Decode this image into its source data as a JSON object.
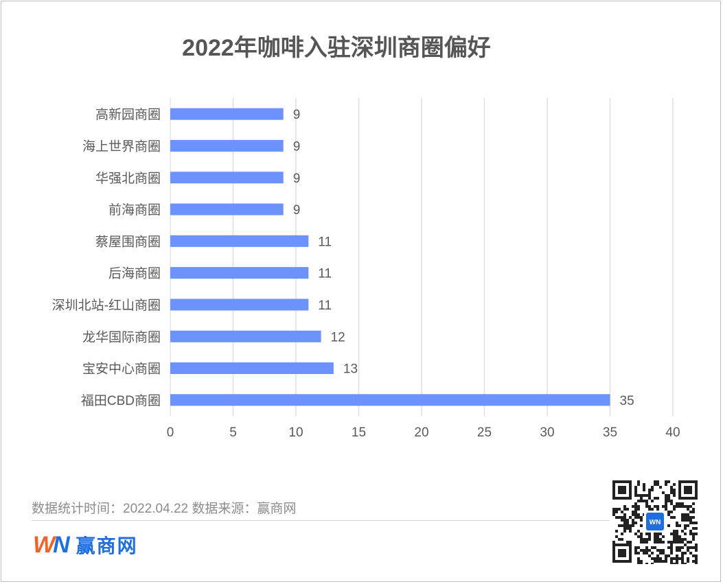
{
  "title": "2022年咖啡入驻深圳商圈偏好",
  "footer": {
    "stats_text": "数据统计时间：2022.04.22  数据来源：赢商网"
  },
  "logo": {
    "mark_w": "W",
    "mark_n": "N",
    "text": "赢商网",
    "qr_badge": "WN"
  },
  "colors": {
    "bar": "#6c93fb",
    "grid": "#d9d9d9",
    "label": "#595959"
  },
  "chart_data": {
    "type": "bar",
    "orientation": "horizontal",
    "categories": [
      "高新园商圈",
      "海上世界商圈",
      "华强北商圈",
      "前海商圈",
      "蔡屋围商圈",
      "后海商圈",
      "深圳北站-红山商圈",
      "龙华国际商圈",
      "宝安中心商圈",
      "福田CBD商圈"
    ],
    "values": [
      9,
      9,
      9,
      9,
      11,
      11,
      11,
      12,
      13,
      35
    ],
    "xlim": [
      0,
      40
    ],
    "xticks": [
      0,
      5,
      10,
      15,
      20,
      25,
      30,
      35,
      40
    ],
    "grid": "vertical",
    "data_labels": true,
    "title": "2022年咖啡入驻深圳商圈偏好"
  }
}
